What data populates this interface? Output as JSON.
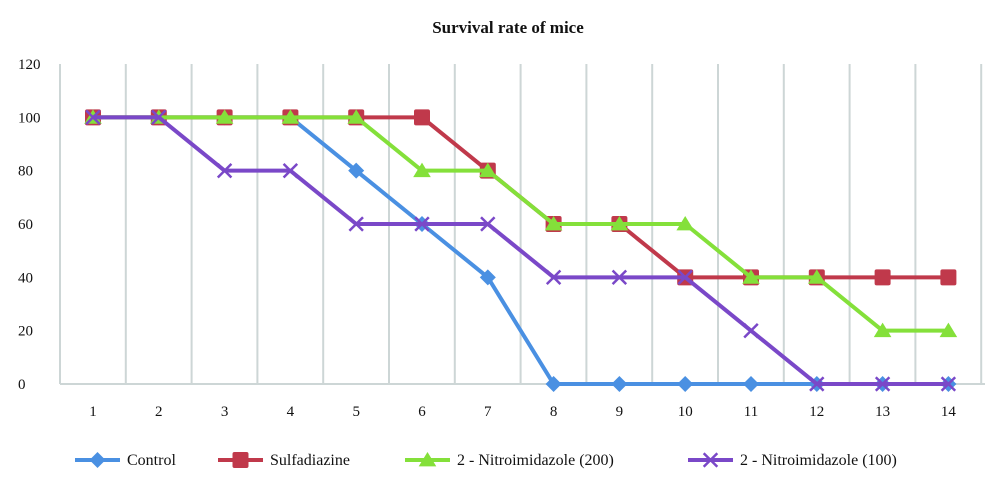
{
  "chart_data": {
    "type": "line",
    "title": "Survival rate of mice",
    "xlabel": "",
    "ylabel": "",
    "x": [
      1,
      2,
      3,
      4,
      5,
      6,
      7,
      8,
      9,
      10,
      11,
      12,
      13,
      14
    ],
    "ylim": [
      0,
      120
    ],
    "yticks": [
      0,
      20,
      40,
      60,
      80,
      100,
      120
    ],
    "grid": "vertical",
    "legend": "bottom",
    "series": [
      {
        "name": "Control",
        "color": "#4a90e2",
        "marker": "diamond",
        "values": [
          100,
          100,
          100,
          100,
          80,
          60,
          40,
          0,
          0,
          0,
          0,
          0,
          0,
          0
        ]
      },
      {
        "name": "Sulfadiazine",
        "color": "#c0394b",
        "marker": "square",
        "values": [
          100,
          100,
          100,
          100,
          100,
          100,
          80,
          60,
          60,
          40,
          40,
          40,
          40,
          40
        ]
      },
      {
        "name": "2 - Nitroimidazole (200)",
        "color": "#84e03a",
        "marker": "triangle",
        "values": [
          100,
          100,
          100,
          100,
          100,
          80,
          80,
          60,
          60,
          60,
          40,
          40,
          20,
          20
        ]
      },
      {
        "name": "2 - Nitroimidazole (100)",
        "color": "#7a48c8",
        "marker": "x",
        "values": [
          100,
          100,
          80,
          80,
          60,
          60,
          60,
          40,
          40,
          40,
          20,
          0,
          0,
          0
        ]
      }
    ]
  }
}
